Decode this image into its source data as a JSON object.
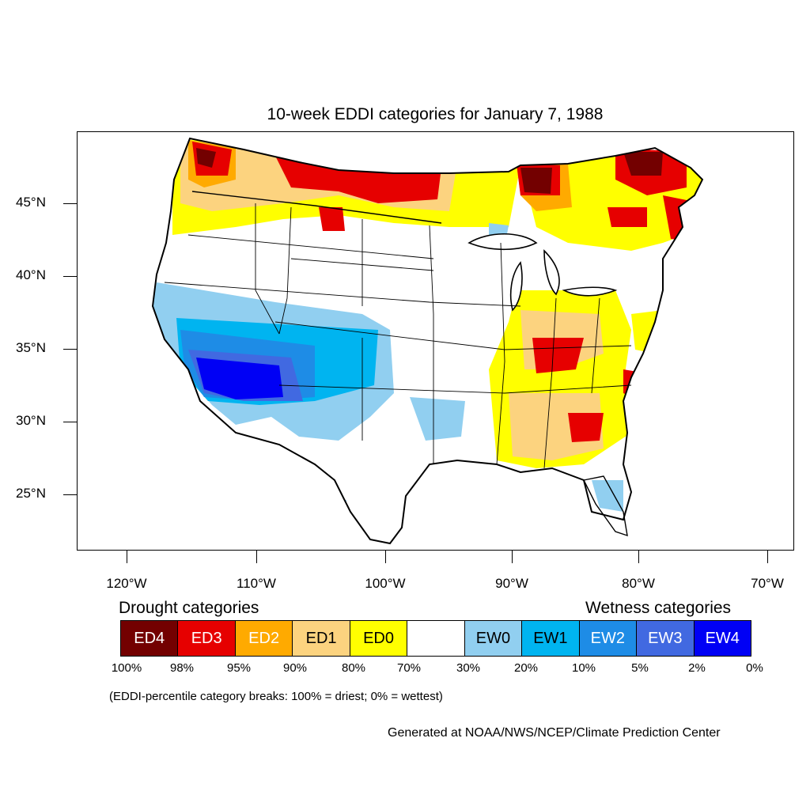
{
  "title": "10-week EDDI categories for January 7, 1988",
  "map": {
    "lat_labels": [
      "45°N",
      "40°N",
      "35°N",
      "30°N",
      "25°N"
    ],
    "lon_labels": [
      "120°W",
      "110°W",
      "100°W",
      "90°W",
      "80°W",
      "70°W"
    ]
  },
  "legend": {
    "drought_heading": "Drought categories",
    "wetness_heading": "Wetness categories",
    "categories": [
      {
        "label": "ED4",
        "color": "#730000",
        "text_color": "#ffffff"
      },
      {
        "label": "ED3",
        "color": "#e60000",
        "text_color": "#ffffff"
      },
      {
        "label": "ED2",
        "color": "#ffaa00",
        "text_color": "#ffffff"
      },
      {
        "label": "ED1",
        "color": "#fcd37f",
        "text_color": "#000000"
      },
      {
        "label": "ED0",
        "color": "#ffff00",
        "text_color": "#000000"
      },
      {
        "label": "",
        "color": "#ffffff",
        "text_color": "#000000"
      },
      {
        "label": "EW0",
        "color": "#91cff0",
        "text_color": "#000000"
      },
      {
        "label": "EW1",
        "color": "#00b4f0",
        "text_color": "#000000"
      },
      {
        "label": "EW2",
        "color": "#1e8ce6",
        "text_color": "#ffffff"
      },
      {
        "label": "EW3",
        "color": "#4169e1",
        "text_color": "#ffffff"
      },
      {
        "label": "EW4",
        "color": "#0000f5",
        "text_color": "#ffffff"
      }
    ],
    "percent_breaks": [
      "100%",
      "98%",
      "95%",
      "90%",
      "80%",
      "70%",
      "30%",
      "20%",
      "10%",
      "5%",
      "2%",
      "0%"
    ],
    "breaks_note": "(EDDI-percentile category breaks: 100% = driest; 0% = wettest)"
  },
  "credit": "Generated at NOAA/NWS/NCEP/Climate Prediction Center"
}
